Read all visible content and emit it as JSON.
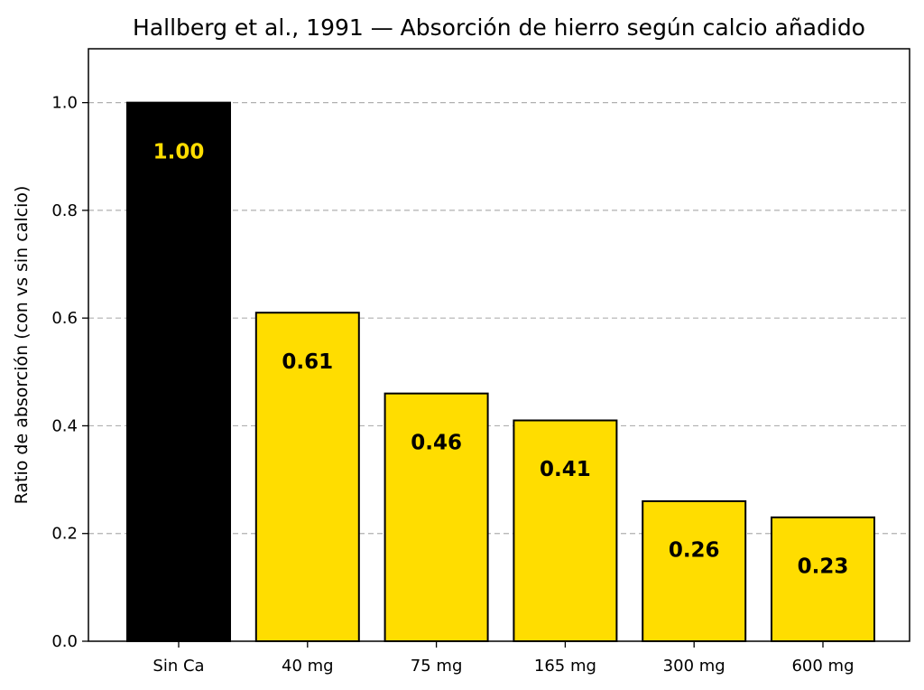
{
  "chart_data": {
    "type": "bar",
    "title": "Hallberg et al., 1991 — Absorción de hierro según calcio añadido",
    "xlabel": "",
    "ylabel": "Ratio de absorción (con vs sin calcio)",
    "categories": [
      "Sin Ca",
      "40 mg",
      "75 mg",
      "165 mg",
      "300 mg",
      "600 mg"
    ],
    "values": [
      1.0,
      0.61,
      0.46,
      0.41,
      0.26,
      0.23
    ],
    "value_labels": [
      "1.00",
      "0.61",
      "0.46",
      "0.41",
      "0.26",
      "0.23"
    ],
    "bar_colors": [
      "#000000",
      "#FFDD00",
      "#FFDD00",
      "#FFDD00",
      "#FFDD00",
      "#FFDD00"
    ],
    "label_colors": [
      "#FFDD00",
      "#000000",
      "#000000",
      "#000000",
      "#000000",
      "#000000"
    ],
    "ylim": [
      0,
      1.1
    ],
    "yticks": [
      "0.0",
      "0.2",
      "0.4",
      "0.6",
      "0.8",
      "1.0"
    ],
    "grid": "horizontal-dashed",
    "legend": "none"
  }
}
